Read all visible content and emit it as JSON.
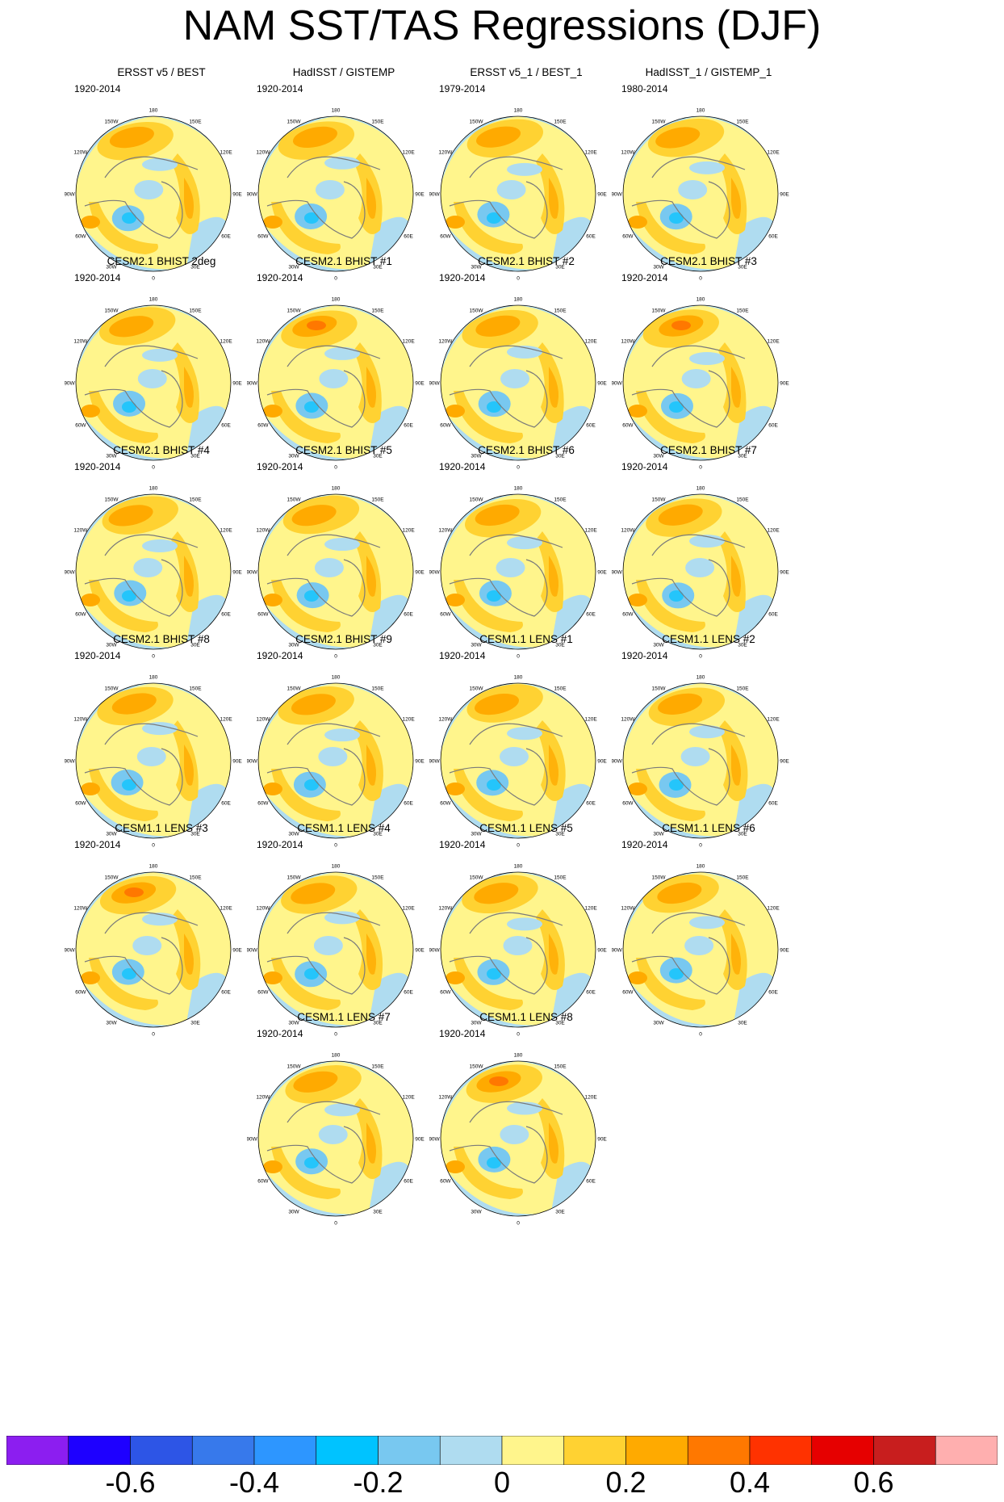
{
  "title": "NAM SST/TAS Regressions (DJF)",
  "panels": [
    {
      "title": "ERSST v5 / BEST",
      "period": "1920-2014"
    },
    {
      "title": "HadISST / GISTEMP",
      "period": "1920-2014"
    },
    {
      "title": "ERSST v5_1 / BEST_1",
      "period": "1979-2014"
    },
    {
      "title": "HadISST_1 / GISTEMP_1",
      "period": "1980-2014"
    },
    {
      "title": "CESM2.1 BHIST 2deg",
      "period": "1920-2014"
    },
    {
      "title": "CESM2.1 BHIST #1",
      "period": "1920-2014"
    },
    {
      "title": "CESM2.1 BHIST #2",
      "period": "1920-2014"
    },
    {
      "title": "CESM2.1 BHIST #3",
      "period": "1920-2014"
    },
    {
      "title": "CESM2.1 BHIST #4",
      "period": "1920-2014"
    },
    {
      "title": "CESM2.1 BHIST #5",
      "period": "1920-2014"
    },
    {
      "title": "CESM2.1 BHIST #6",
      "period": "1920-2014"
    },
    {
      "title": "CESM2.1 BHIST #7",
      "period": "1920-2014"
    },
    {
      "title": "CESM2.1 BHIST #8",
      "period": "1920-2014"
    },
    {
      "title": "CESM2.1 BHIST #9",
      "period": "1920-2014"
    },
    {
      "title": "CESM1.1 LENS #1",
      "period": "1920-2014"
    },
    {
      "title": "CESM1.1 LENS #2",
      "period": "1920-2014"
    },
    {
      "title": "CESM1.1 LENS #3",
      "period": "1920-2014"
    },
    {
      "title": "CESM1.1 LENS #4",
      "period": "1920-2014"
    },
    {
      "title": "CESM1.1 LENS #5",
      "period": "1920-2014"
    },
    {
      "title": "CESM1.1 LENS #6",
      "period": "1920-2014"
    },
    {
      "title": "CESM1.1 LENS #7",
      "period": "1920-2014"
    },
    {
      "title": "CESM1.1 LENS #8",
      "period": "1920-2014"
    }
  ],
  "longitude_labels": [
    "180",
    "150E",
    "120E",
    "90E",
    "60E",
    "30E",
    "0",
    "30W",
    "60W",
    "90W",
    "120W",
    "150W"
  ],
  "colorbar": {
    "colors": [
      "#8c1ef0",
      "#1e00ff",
      "#2d55e6",
      "#3779eb",
      "#2d96ff",
      "#00c3ff",
      "#78c8f0",
      "#afdcf0",
      "#fff58c",
      "#ffd232",
      "#ffaa00",
      "#ff7800",
      "#ff3200",
      "#e60000",
      "#c81e1e",
      "#ffafaf"
    ],
    "labels": [
      "-0.6",
      "-0.4",
      "-0.2",
      "0",
      "0.2",
      "0.4",
      "0.6"
    ]
  }
}
